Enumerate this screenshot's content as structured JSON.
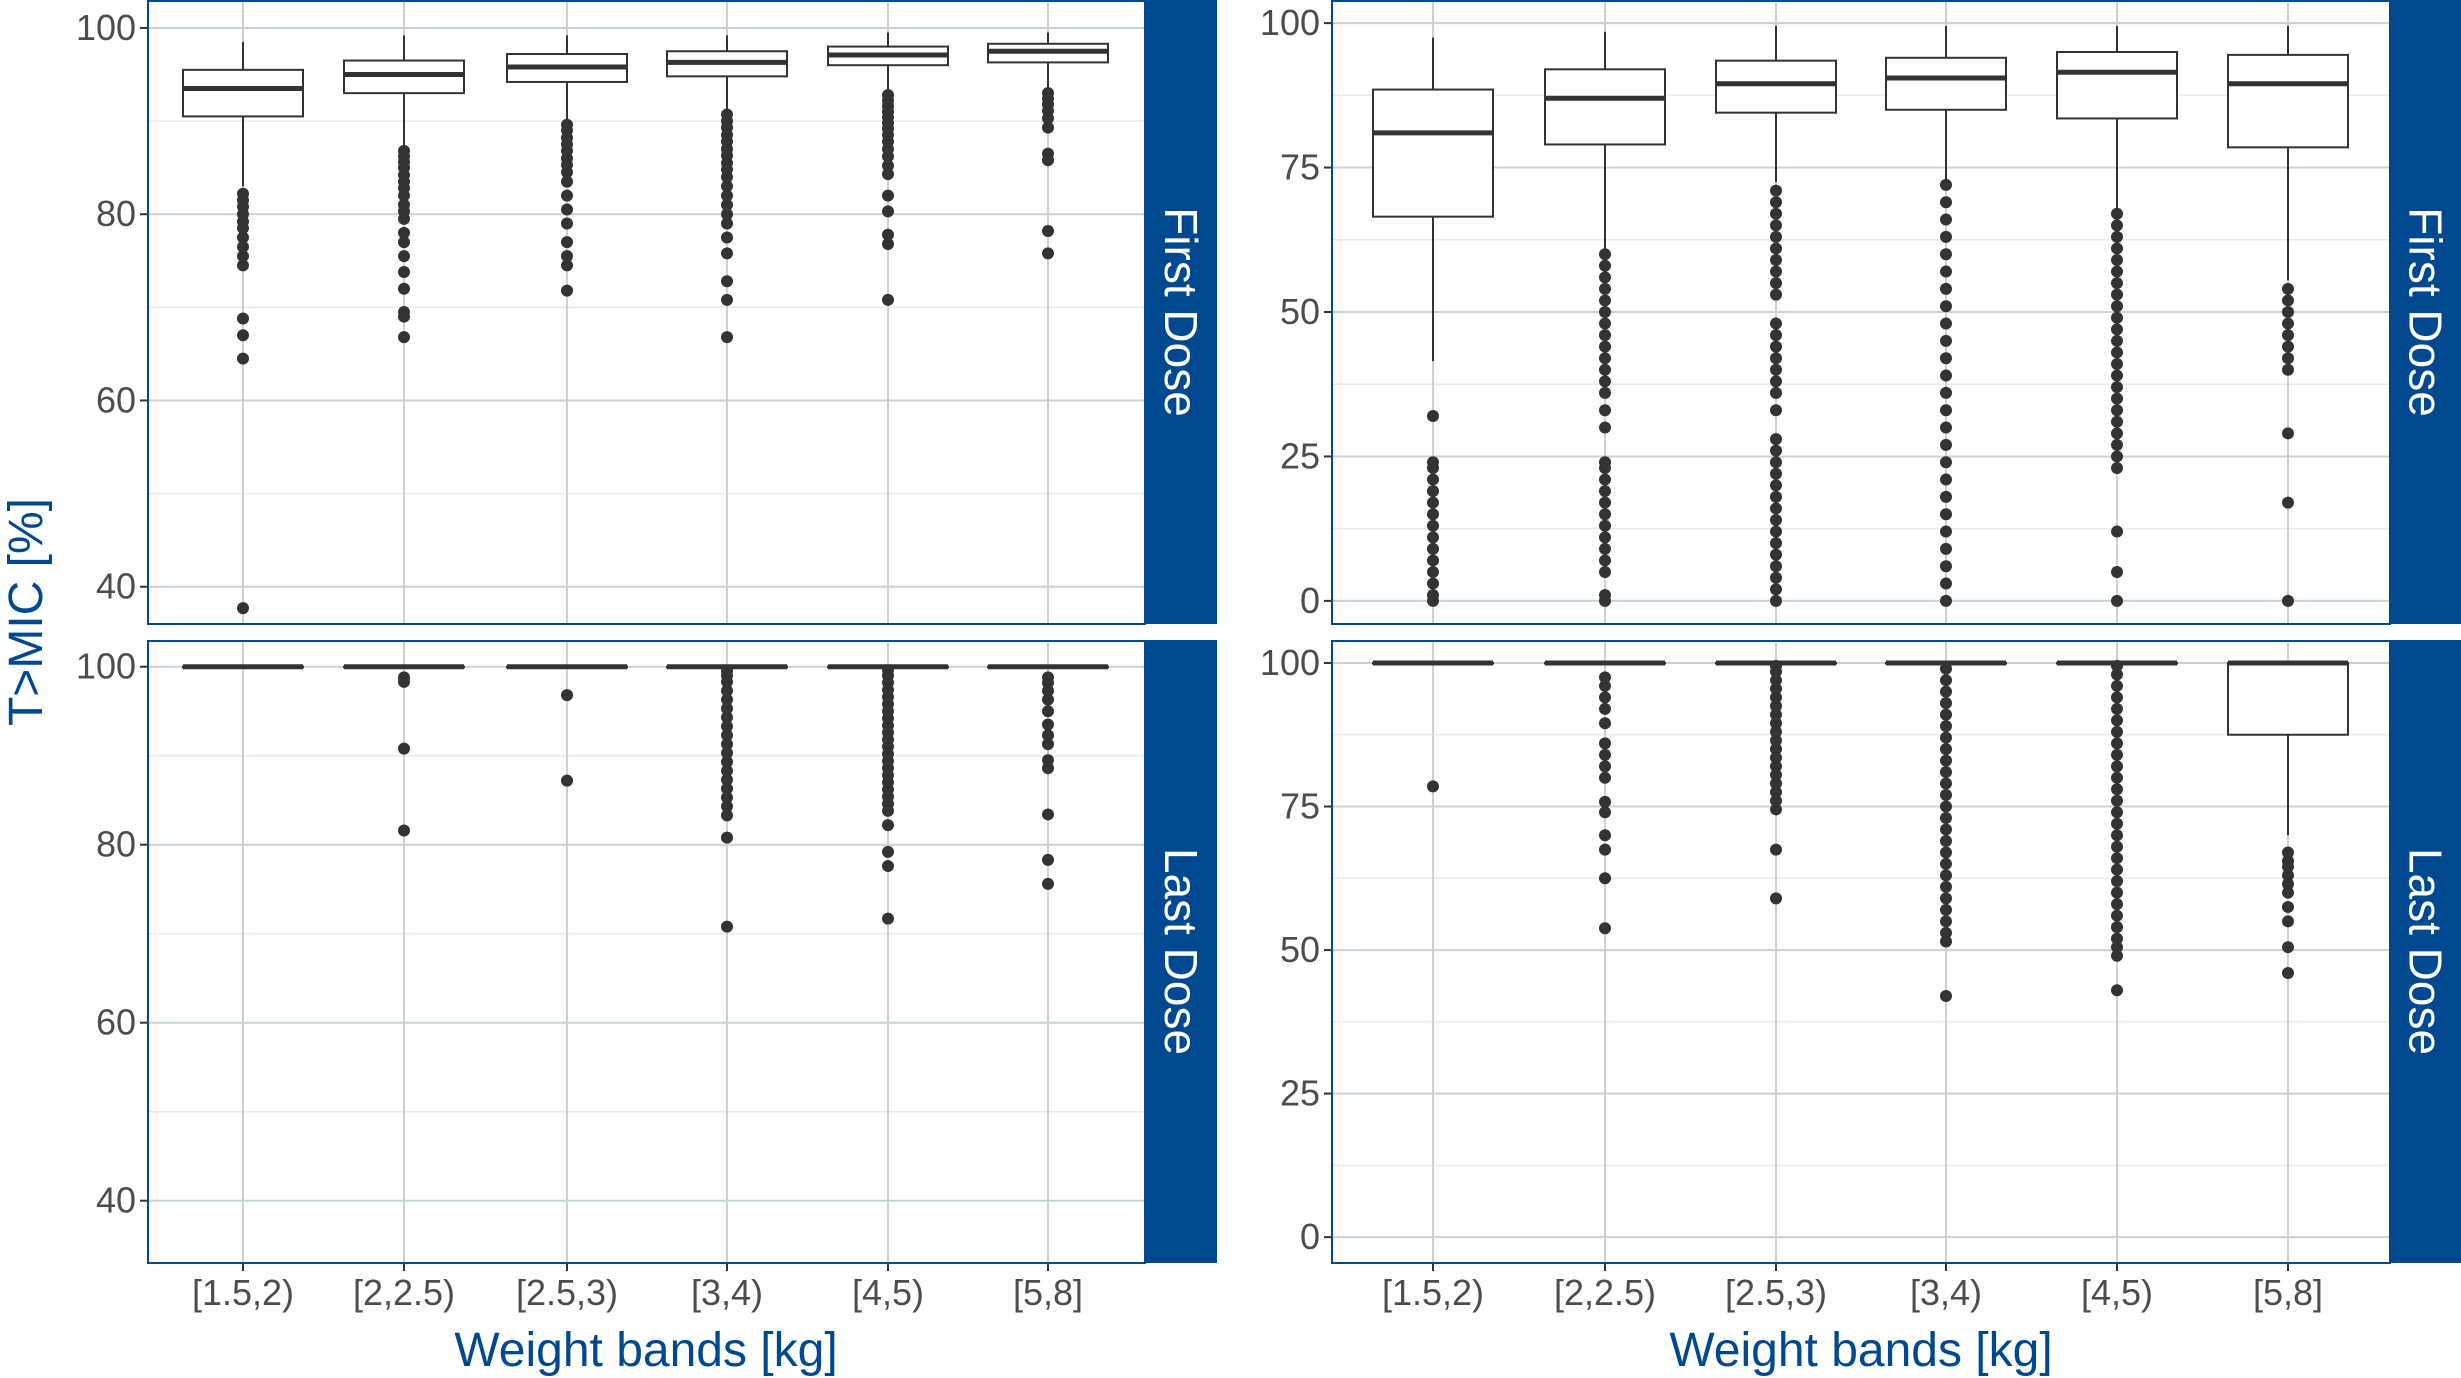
{
  "colors": {
    "accent": "#004990",
    "strip": "#004990",
    "grid_major": "#c9d3d3",
    "grid_minor": "#e6eded",
    "box": "#333333",
    "outlier": "#333333",
    "tick_text": "#4d4d4d"
  },
  "y_label": "T>MIC [%]",
  "chart_data": [
    {
      "type": "box",
      "facet_row": "First Dose",
      "xlabel": "Weight bands [kg]",
      "ylim": [
        36,
        103
      ],
      "y_ticks": [
        40,
        60,
        80,
        100
      ],
      "categories": [
        "[1.5,2)",
        "[2,2.5)",
        "[2.5,3)",
        "[3,4)",
        "[4,5)",
        "[5,8]"
      ],
      "boxes": [
        {
          "min": 83,
          "q1": 90.5,
          "median": 93.5,
          "q3": 95.5,
          "max": 98.5,
          "outliers": [
            37.7,
            64.5,
            67,
            68.8,
            74.5,
            75.5,
            76.5,
            77.5,
            78.5,
            79.2,
            80,
            80.8,
            81.5,
            82.2
          ]
        },
        {
          "min": 87.3,
          "q1": 93,
          "median": 95,
          "q3": 96.5,
          "max": 99.2,
          "outliers": [
            66.8,
            69,
            69.5,
            72,
            73.8,
            75.5,
            77,
            78,
            79.5,
            80.3,
            81,
            82,
            82.8,
            83.5,
            84.2,
            85,
            85.6,
            86.2,
            86.8
          ]
        },
        {
          "min": 90,
          "q1": 94.2,
          "median": 95.8,
          "q3": 97.2,
          "max": 99.2,
          "outliers": [
            71.8,
            74.5,
            75.5,
            77,
            79,
            80.5,
            82,
            83.5,
            84.5,
            85.3,
            86,
            86.8,
            87.5,
            88.2,
            89,
            89.6
          ]
        },
        {
          "min": 91.2,
          "q1": 94.8,
          "median": 96.3,
          "q3": 97.5,
          "max": 99.2,
          "outliers": [
            66.8,
            70.8,
            72.8,
            75.8,
            77.5,
            79,
            80,
            81,
            82,
            83,
            84,
            84.8,
            85.5,
            86.3,
            87,
            87.8,
            88.5,
            89.3,
            90,
            90.7
          ]
        },
        {
          "min": 93.2,
          "q1": 96,
          "median": 97.1,
          "q3": 98,
          "max": 99.5,
          "outliers": [
            70.8,
            76.8,
            77.8,
            80.3,
            82,
            84.3,
            85.2,
            86.2,
            87,
            87.8,
            88.5,
            89.2,
            89.8,
            90.4,
            91,
            91.6,
            92.2,
            92.8
          ]
        },
        {
          "min": 93.5,
          "q1": 96.3,
          "median": 97.5,
          "q3": 98.3,
          "max": 99.5,
          "outliers": [
            75.8,
            78.2,
            85.8,
            86.5,
            89.3,
            90.3,
            91.1,
            91.8,
            92.4,
            93
          ]
        }
      ]
    },
    {
      "type": "box",
      "facet_row": "Last Dose",
      "xlabel": "Weight bands [kg]",
      "ylim": [
        33,
        103
      ],
      "y_ticks": [
        40,
        60,
        80,
        100
      ],
      "categories": [
        "[1.5,2)",
        "[2,2.5)",
        "[2.5,3)",
        "[3,4)",
        "[4,5)",
        "[5,8]"
      ],
      "boxes": [
        {
          "min": 100,
          "q1": 100,
          "median": 100,
          "q3": 100,
          "max": 100,
          "outliers": []
        },
        {
          "min": 100,
          "q1": 100,
          "median": 100,
          "q3": 100,
          "max": 100,
          "outliers": [
            81.6,
            90.8,
            98.3,
            98.8
          ]
        },
        {
          "min": 100,
          "q1": 100,
          "median": 100,
          "q3": 100,
          "max": 100,
          "outliers": [
            87.2,
            96.8
          ]
        },
        {
          "min": 100,
          "q1": 100,
          "median": 100,
          "q3": 100,
          "max": 100,
          "outliers": [
            70.8,
            80.8,
            83.3,
            84.3,
            85.3,
            86.3,
            87.3,
            88.3,
            89.3,
            90.3,
            91.3,
            92.3,
            93.3,
            94.3,
            95.3,
            96.3,
            97.3,
            98.3,
            99,
            99.5
          ]
        },
        {
          "min": 100,
          "q1": 100,
          "median": 100,
          "q3": 100,
          "max": 100,
          "outliers": [
            71.7,
            77.6,
            79.2,
            82.2,
            83.8,
            84.6,
            85.4,
            86.2,
            87,
            87.8,
            88.6,
            89.4,
            90.2,
            91,
            91.8,
            92.6,
            93.4,
            94.2,
            95,
            95.8,
            96.6,
            97.4,
            98.2,
            99,
            99.6
          ]
        },
        {
          "min": 100,
          "q1": 100,
          "median": 100,
          "q3": 100,
          "max": 100,
          "outliers": [
            75.6,
            78.3,
            83.4,
            88.6,
            89.5,
            91.3,
            92.3,
            93.5,
            95,
            96.3,
            97.3,
            98.2,
            98.8
          ]
        }
      ]
    },
    {
      "type": "box",
      "facet_row": "First Dose",
      "xlabel": "Weight bands [kg]",
      "ylim": [
        -4,
        104
      ],
      "y_ticks": [
        0,
        25,
        50,
        75,
        100
      ],
      "categories": [
        "[1.5,2)",
        "[2,2.5)",
        "[2.5,3)",
        "[3,4)",
        "[4,5)",
        "[5,8]"
      ],
      "boxes": [
        {
          "min": 41.5,
          "q1": 66.5,
          "median": 81,
          "q3": 88.5,
          "max": 97.5,
          "outliers": [
            0,
            1,
            3,
            5,
            7,
            9,
            11,
            13,
            15,
            17,
            19,
            21,
            23,
            24,
            32
          ]
        },
        {
          "min": 61,
          "q1": 79,
          "median": 87,
          "q3": 92,
          "max": 98.5,
          "outliers": [
            0,
            1,
            5,
            7,
            9,
            11,
            13,
            15,
            17,
            19,
            21,
            23,
            24,
            30,
            33,
            36,
            38,
            40,
            42,
            44,
            46,
            48,
            50,
            52,
            54,
            56,
            58,
            60
          ]
        },
        {
          "min": 72.5,
          "q1": 84.5,
          "median": 89.5,
          "q3": 93.5,
          "max": 99.5,
          "outliers": [
            0,
            2,
            4,
            6,
            8,
            10,
            12,
            14,
            16,
            18,
            20,
            22,
            24,
            26,
            28,
            33,
            36,
            38,
            40,
            42,
            44,
            46,
            48,
            53,
            55,
            57,
            59,
            61,
            63,
            65,
            67,
            69,
            71
          ]
        },
        {
          "min": 72.5,
          "q1": 85,
          "median": 90.5,
          "q3": 94,
          "max": 99.5,
          "outliers": [
            0,
            3,
            6,
            9,
            12,
            15,
            18,
            21,
            24,
            27,
            30,
            33,
            36,
            39,
            42,
            45,
            48,
            51,
            54,
            57,
            60,
            63,
            66,
            69,
            72
          ]
        },
        {
          "min": 67.5,
          "q1": 83.5,
          "median": 91.5,
          "q3": 95,
          "max": 99.5,
          "outliers": [
            0,
            5,
            12,
            23,
            25,
            27,
            29,
            31,
            33,
            35,
            37,
            39,
            41,
            43,
            45,
            47,
            49,
            51,
            53,
            55,
            57,
            59,
            61,
            63,
            65,
            67
          ]
        },
        {
          "min": 55.5,
          "q1": 78.5,
          "median": 89.5,
          "q3": 94.5,
          "max": 99.5,
          "outliers": [
            0,
            17,
            29,
            40,
            42,
            44,
            46,
            48,
            50,
            52,
            54
          ]
        }
      ]
    },
    {
      "type": "box",
      "facet_row": "Last Dose",
      "xlabel": "Weight bands [kg]",
      "ylim": [
        -4.5,
        104
      ],
      "y_ticks": [
        0,
        25,
        50,
        75,
        100
      ],
      "categories": [
        "[1.5,2)",
        "[2,2.5)",
        "[2.5,3)",
        "[3,4)",
        "[4,5)",
        "[5,8]"
      ],
      "boxes": [
        {
          "min": 100,
          "q1": 100,
          "median": 100,
          "q3": 100,
          "max": 100,
          "outliers": [
            78.5
          ]
        },
        {
          "min": 100,
          "q1": 100,
          "median": 100,
          "q3": 100,
          "max": 100,
          "outliers": [
            53.8,
            62.5,
            67.5,
            70,
            74,
            75.8,
            80,
            82,
            84,
            86,
            89.5,
            92,
            94,
            96,
            97.5
          ]
        },
        {
          "min": 100,
          "q1": 100,
          "median": 100,
          "q3": 100,
          "max": 100,
          "outliers": [
            59,
            67.5,
            74.5,
            76,
            77.5,
            79,
            80.5,
            82,
            83.5,
            85,
            86.5,
            88,
            89.5,
            91,
            92.5,
            94,
            95.5,
            97,
            98.5,
            99.5
          ]
        },
        {
          "min": 100,
          "q1": 100,
          "median": 100,
          "q3": 100,
          "max": 100,
          "outliers": [
            42,
            51.5,
            53,
            55,
            57,
            59,
            61,
            63,
            65,
            67,
            69,
            71,
            73,
            75,
            77,
            79,
            81,
            83,
            85,
            87,
            89,
            91,
            93,
            95,
            97,
            99
          ]
        },
        {
          "min": 100,
          "q1": 100,
          "median": 100,
          "q3": 100,
          "max": 100,
          "outliers": [
            43,
            49,
            50.5,
            52,
            54,
            56,
            58,
            60,
            62,
            64,
            66,
            68,
            70,
            72,
            74,
            76,
            78,
            80,
            82,
            84,
            86,
            88,
            90,
            92,
            94,
            96,
            98,
            99.5
          ]
        },
        {
          "min": 70,
          "q1": 87.5,
          "median": 100,
          "q3": 100,
          "max": 100,
          "outliers": [
            46,
            50.5,
            55,
            57.5,
            60,
            61.5,
            63,
            64.5,
            65.5,
            67
          ]
        }
      ]
    }
  ]
}
